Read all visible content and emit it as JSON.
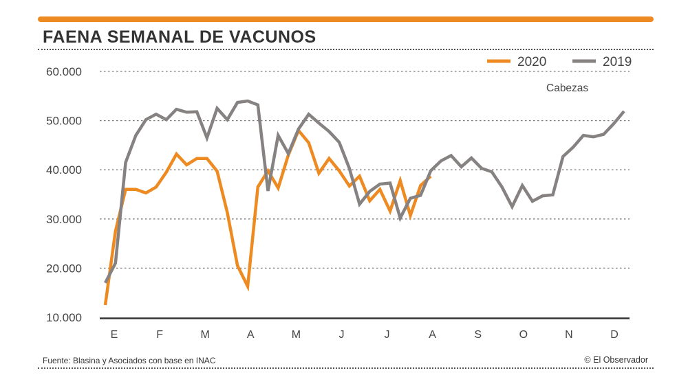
{
  "header": {
    "title": "FAENA SEMANAL DE VACUNOS",
    "accent_color": "#EE8A22"
  },
  "footer": {
    "source": "Fuente: Blasina y Asociados con base en INAC",
    "credit": "© El Observador"
  },
  "chart_data": {
    "type": "line",
    "title": "FAENA SEMANAL DE VACUNOS",
    "unit_label": "Cabezas",
    "ylim": [
      10000,
      60000
    ],
    "y_ticks": [
      10000,
      20000,
      30000,
      40000,
      50000,
      60000
    ],
    "y_tick_labels": [
      "10.000",
      "20.000",
      "30.000",
      "40.000",
      "50.000",
      "60.000"
    ],
    "x_tick_labels": [
      "E",
      "F",
      "M",
      "A",
      "M",
      "J",
      "J",
      "A",
      "S",
      "O",
      "N",
      "D"
    ],
    "x_range_weeks": [
      1,
      52
    ],
    "grid": true,
    "legend_position": "top-right",
    "series": [
      {
        "name": "2020",
        "color": "#EE8A22",
        "x": [
          1,
          2,
          3,
          4,
          5,
          6,
          7,
          8,
          9,
          10,
          11,
          12,
          13,
          14,
          15,
          16,
          17,
          18,
          19,
          20,
          21,
          22,
          23,
          24,
          25,
          26,
          27,
          28,
          29,
          30,
          31,
          32,
          33
        ],
        "values": [
          12500,
          27500,
          36000,
          36000,
          35300,
          36500,
          39500,
          43200,
          41000,
          42300,
          42300,
          39700,
          31300,
          20500,
          16300,
          36500,
          39800,
          36300,
          43000,
          48000,
          45500,
          39300,
          42300,
          39800,
          36700,
          38700,
          33700,
          36000,
          31600,
          37800,
          30700,
          36800,
          38700
        ]
      },
      {
        "name": "2019",
        "color": "#878282",
        "x": [
          1,
          2,
          3,
          4,
          5,
          6,
          7,
          8,
          9,
          10,
          11,
          12,
          13,
          14,
          15,
          16,
          17,
          18,
          19,
          20,
          21,
          22,
          23,
          24,
          25,
          26,
          27,
          28,
          29,
          30,
          31,
          32,
          33,
          34,
          35,
          36,
          37,
          38,
          39,
          40,
          41,
          42,
          43,
          44,
          45,
          46,
          47,
          48,
          49,
          50,
          51,
          52
        ],
        "values": [
          17000,
          21000,
          41500,
          47000,
          50200,
          51300,
          50200,
          52300,
          51700,
          51800,
          46500,
          52500,
          50200,
          53700,
          54000,
          53200,
          35700,
          47000,
          43300,
          48300,
          51300,
          49500,
          47800,
          45600,
          40300,
          33000,
          35600,
          37100,
          37300,
          30200,
          34200,
          34800,
          39800,
          41800,
          42900,
          40600,
          42400,
          40300,
          39600,
          36500,
          32500,
          36800,
          33600,
          34700,
          34900,
          42700,
          44600,
          47000,
          46700,
          47200,
          49400,
          51900
        ]
      }
    ]
  }
}
